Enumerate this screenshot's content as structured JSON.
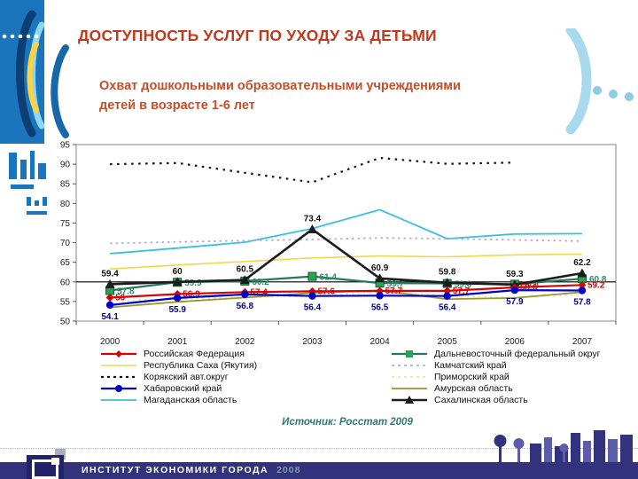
{
  "slide": {
    "title": "ДОСТУПНОСТЬ УСЛУГ ПО УХОДУ ЗА ДЕТЬМИ",
    "subtitle_line1": "Охват дошкольными образовательными учреждениями",
    "subtitle_line2": "детей в возрасте 1-6 лет",
    "source": "Источник: Росстат 2009",
    "footer_org": "ИНСТИТУТ ЭКОНОМИКИ ГОРОДА",
    "footer_year": "2008",
    "accent_color": "#bf3a1c",
    "footer_bar_color": "#32327d",
    "left_graphic_color": "#1b75bc",
    "right_bracket_color": "#a9d9ec"
  },
  "chart_data": {
    "type": "line",
    "x": [
      2000,
      2001,
      2002,
      2003,
      2004,
      2005,
      2006,
      2007
    ],
    "ylim": [
      50,
      95
    ],
    "yticks": [
      50,
      55,
      60,
      65,
      70,
      75,
      80,
      85,
      90,
      95
    ],
    "axis_cross_value": 60,
    "grid": false,
    "legend_position": "bottom-two-columns",
    "series": [
      {
        "name": "Российская Федерация",
        "color": "#d40404",
        "width": 2.2,
        "dash": null,
        "marker": "diamond",
        "marker_color": "#d40404",
        "values": [
          56,
          56.9,
          57.4,
          57.6,
          57.7,
          57.7,
          58.6,
          59.2
        ],
        "labels": [
          "56",
          "56.9",
          "57.4",
          "57.6",
          "57.7",
          "57.7",
          "58.6",
          "59.2"
        ],
        "label_color": "#d40404",
        "label_dx": 6,
        "label_dy": 3,
        "label_anchor": "start"
      },
      {
        "name": "Республика Саха (Якутия)",
        "color": "#ecd94e",
        "width": 1.6,
        "dash": null,
        "marker": null,
        "values": [
          63.3,
          64.3,
          65.2,
          66.1,
          66.6,
          66.4,
          66.9,
          67.1
        ]
      },
      {
        "name": "Корякский авт.округ",
        "color": "#141414",
        "width": 2.2,
        "dash": "2.5 5.5",
        "marker": null,
        "values": [
          90,
          90.3,
          87.8,
          85.4,
          91.6,
          90.1,
          90.4,
          null
        ]
      },
      {
        "name": "Хабаровский край",
        "color": "#0202c8",
        "width": 2.2,
        "dash": null,
        "marker": "circle",
        "marker_color": "#0202c8",
        "values": [
          54.1,
          55.9,
          56.8,
          56.4,
          56.5,
          56.4,
          57.9,
          57.8
        ],
        "labels": [
          "54.1",
          "55.9",
          "56.8",
          "56.4",
          "56.5",
          "56.4",
          "57.9",
          "57.8"
        ],
        "label_color": "#020290",
        "label_dx": 0,
        "label_dy": 16,
        "label_anchor": "middle"
      },
      {
        "name": "Магаданская область",
        "color": "#38c0dc",
        "width": 1.8,
        "dash": null,
        "marker": null,
        "values": [
          67.2,
          68.6,
          70.1,
          73.6,
          78.4,
          71,
          72.2,
          72.3
        ]
      },
      {
        "name": "Дальневосточный федеральный округ",
        "color": "#23785c",
        "width": 2.2,
        "dash": null,
        "marker": "square",
        "marker_color": "#28a352",
        "values": [
          57.8,
          59.9,
          60.2,
          61.4,
          59.7,
          59.6,
          59.4,
          60.8
        ],
        "labels": [
          "57.8",
          "59.9",
          "60.2",
          "61.4",
          "59.7",
          "59.6",
          "59.4",
          "60.8"
        ],
        "label_color": "#2a8a68",
        "label_dx": 8,
        "label_dy": 4,
        "label_anchor": "start"
      },
      {
        "name": "Камчатский край",
        "color": "#b6aed2",
        "width": 1.8,
        "dash": "2.5 4",
        "marker": null,
        "values": [
          69.8,
          70.2,
          70.5,
          70.8,
          71.2,
          71,
          70.7,
          70.4
        ]
      },
      {
        "name": "Приморский край",
        "color": "#e9e2b4",
        "width": 1.8,
        "dash": "2.5 4",
        "marker": null,
        "values": [
          55.2,
          55.6,
          56.1,
          56.4,
          57.4,
          56.4,
          56.1,
          56.7
        ]
      },
      {
        "name": "Амурская область",
        "color": "#98982c",
        "width": 1.8,
        "dash": null,
        "marker": null,
        "values": [
          53.5,
          54.9,
          56,
          57.2,
          57.8,
          55.6,
          55.9,
          57.4
        ]
      },
      {
        "name": "Сахалинская область",
        "color": "#1c1c1c",
        "width": 2.6,
        "dash": null,
        "marker": "triangle",
        "marker_color": "#1c1c1c",
        "values": [
          59.4,
          60,
          60.5,
          73.4,
          60.9,
          59.8,
          59.3,
          62.2
        ],
        "labels": [
          "59.4",
          "60",
          "60.5",
          "73.4",
          "60.9",
          "59.8",
          "59.3",
          "62.2"
        ],
        "label_color": "#111111",
        "label_dx": 0,
        "label_dy": -9,
        "label_anchor": "middle"
      }
    ],
    "draw_order": [
      1,
      2,
      4,
      6,
      7,
      8,
      5,
      9,
      0,
      3
    ],
    "legend_columns": [
      [
        0,
        1,
        2,
        3,
        4
      ],
      [
        5,
        6,
        7,
        8,
        9
      ]
    ]
  }
}
